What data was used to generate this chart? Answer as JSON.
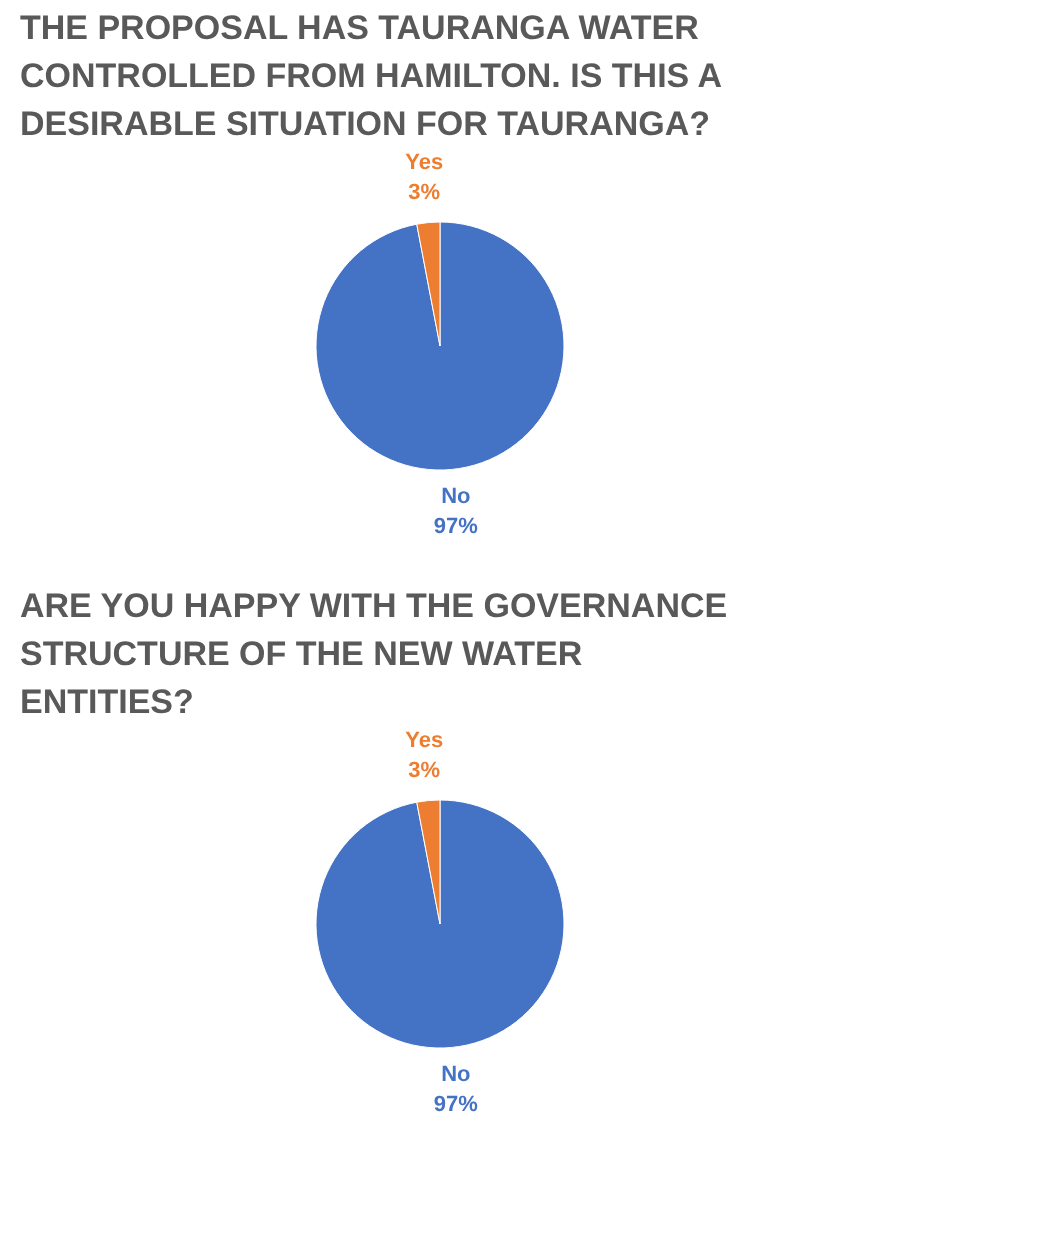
{
  "chart_data": [
    {
      "type": "pie",
      "title": "THE PROPOSAL HAS TAURANGA WATER CONTROLLED FROM HAMILTON. IS THIS A DESIRABLE SITUATION FOR TAURANGA?",
      "categories": [
        "No",
        "Yes"
      ],
      "values": [
        97,
        3
      ],
      "colors": [
        "#4472c4",
        "#ed7d31"
      ],
      "value_labels": [
        "97%",
        "3%"
      ],
      "legend": false
    },
    {
      "type": "pie",
      "title": "ARE YOU HAPPY WITH THE GOVERNANCE STRUCTURE OF THE NEW WATER ENTITIES?",
      "categories": [
        "No",
        "Yes"
      ],
      "values": [
        97,
        3
      ],
      "colors": [
        "#4472c4",
        "#ed7d31"
      ],
      "value_labels": [
        "97%",
        "3%"
      ],
      "legend": false
    }
  ]
}
